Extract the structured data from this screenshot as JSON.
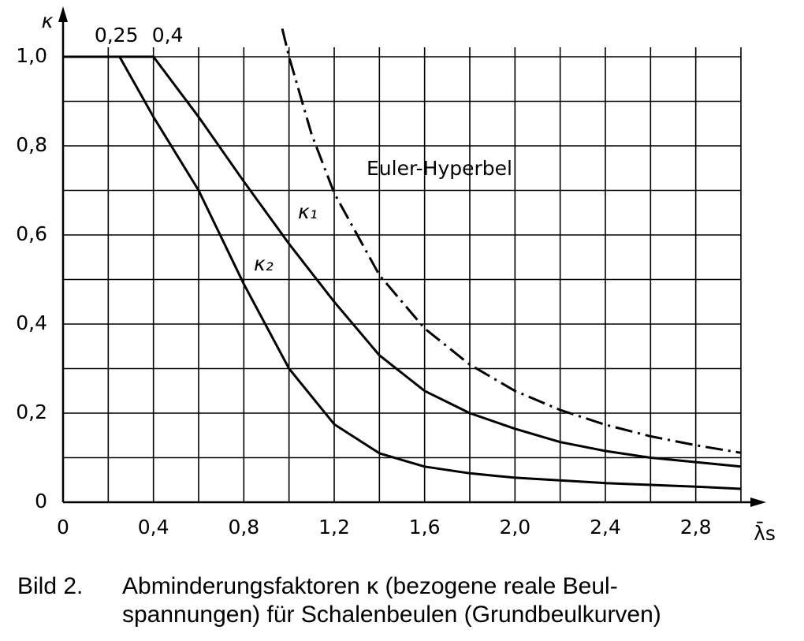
{
  "chart_data": {
    "type": "line",
    "x_label": "λ̄s",
    "y_label": "κ",
    "caption_number": "Bild 2.",
    "caption_lines": [
      "Abminderungsfaktoren κ (bezogene reale Beul-",
      "spannungen) für Schalenbeulen (Grundbeulkurven)"
    ],
    "xlim": [
      0,
      3.0
    ],
    "ylim": [
      0,
      1.1
    ],
    "xticks": [
      0,
      {
        "value": 0.4,
        "label": "0,4"
      },
      {
        "value": 0.8,
        "label": "0,8"
      },
      {
        "value": 1.2,
        "label": "1,2"
      },
      {
        "value": 1.6,
        "label": "1,6"
      },
      {
        "value": 2.0,
        "label": "2,0"
      },
      {
        "value": 2.4,
        "label": "2,4"
      },
      {
        "value": 2.8,
        "label": "2,8"
      }
    ],
    "yticks": [
      0,
      {
        "value": 0.2,
        "label": "0,2"
      },
      {
        "value": 0.4,
        "label": "0,4"
      },
      {
        "value": 0.6,
        "label": "0,6"
      },
      {
        "value": 0.8,
        "label": "0,8"
      },
      {
        "value": 1.0,
        "label": "1,0"
      }
    ],
    "top_ticks": [
      {
        "value": 0.25,
        "label": "0,25"
      },
      {
        "value": 0.4,
        "label": "0,4"
      }
    ],
    "xgrid": [
      0.2,
      0.4,
      0.6,
      0.8,
      1.0,
      1.2,
      1.4,
      1.6,
      1.8,
      2.0,
      2.2,
      2.4,
      2.6,
      2.8,
      3.0
    ],
    "ygrid": [
      0.1,
      0.2,
      0.3,
      0.4,
      0.5,
      0.6,
      0.7,
      0.8,
      0.9,
      1.0
    ],
    "grid": true,
    "series": [
      {
        "name": "κ₁",
        "color": "#000000",
        "dash": "solid",
        "x": [
          0,
          0.4,
          0.6,
          0.8,
          1.0,
          1.2,
          1.4,
          1.6,
          1.8,
          2.0,
          2.2,
          2.4,
          2.6,
          2.8,
          3.0
        ],
        "values": [
          1.0,
          1.0,
          0.865,
          0.72,
          0.58,
          0.45,
          0.33,
          0.25,
          0.2,
          0.165,
          0.135,
          0.115,
          0.1,
          0.09,
          0.08
        ]
      },
      {
        "name": "κ₂",
        "color": "#000000",
        "dash": "solid",
        "x": [
          0,
          0.25,
          0.4,
          0.6,
          0.8,
          1.0,
          1.2,
          1.4,
          1.6,
          1.8,
          2.0,
          2.4,
          2.8,
          3.0
        ],
        "values": [
          1.0,
          1.0,
          0.865,
          0.7,
          0.49,
          0.3,
          0.175,
          0.11,
          0.08,
          0.065,
          0.055,
          0.043,
          0.035,
          0.03
        ]
      },
      {
        "name": "Euler-Hyperbel",
        "color": "#000000",
        "dash": "dashdot",
        "x": [
          0.97,
          1.0,
          1.1,
          1.2,
          1.4,
          1.6,
          1.8,
          2.0,
          2.2,
          2.4,
          2.6,
          2.8,
          3.0
        ],
        "values": [
          1.063,
          1.0,
          0.826,
          0.694,
          0.51,
          0.39,
          0.309,
          0.25,
          0.207,
          0.174,
          0.148,
          0.128,
          0.111
        ]
      }
    ]
  }
}
